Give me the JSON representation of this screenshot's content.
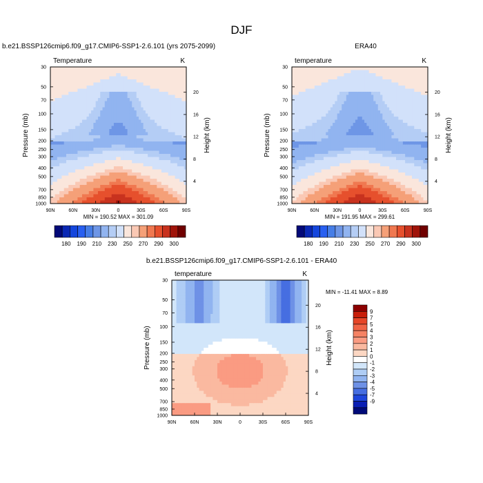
{
  "page_title": "DJF",
  "panels": [
    {
      "title": "b.e21.BSSP126cmip6.f09_g17.CMIP6-SSP1-2.6.101 (yrs 2075-2099)",
      "left_label": "Temperature",
      "right_label": "K",
      "minmax": "MIN = 190.52   MAX = 301.09"
    },
    {
      "title": "ERA40",
      "left_label": "temperature",
      "right_label": "K",
      "minmax": "MIN = 191.95   MAX = 299.61"
    },
    {
      "title": "b.e21.BSSP126cmip6.f09_g17.CMIP6-SSP1-2.6.101 - ERA40",
      "left_label": "temperature",
      "right_label": "K",
      "minmax": "MIN = -11.41   MAX =   8.89"
    }
  ],
  "chart_data": [
    {
      "type": "heatmap",
      "title": "b.e21.BSSP126cmip6.f09_g17.CMIP6-SSP1-2.6.101 (yrs 2075-2099)",
      "variable": "Temperature",
      "units": "K",
      "xlabel": "",
      "ylabel": "Pressure (mb)",
      "ylabel_right": "Height (km)",
      "x_ticks": [
        "90N",
        "60N",
        "30N",
        "0",
        "30S",
        "60S",
        "90S"
      ],
      "y_ticks": [
        30,
        50,
        70,
        100,
        150,
        200,
        250,
        300,
        400,
        500,
        700,
        850,
        1000
      ],
      "y_right_ticks": [
        4,
        8,
        12,
        16,
        20
      ],
      "ylim": [
        1000,
        30
      ],
      "min": 190.52,
      "max": 301.09,
      "colorbar_labels": [
        180,
        190,
        210,
        230,
        250,
        270,
        290,
        300
      ],
      "colorbar_colors": [
        "#030a78",
        "#0a28b4",
        "#1446dc",
        "#285ff0",
        "#467de6",
        "#6e96e6",
        "#91b4f0",
        "#b4cdf5",
        "#d2e1fa",
        "#fae6dc",
        "#fac8b4",
        "#f5a078",
        "#f07850",
        "#e6502d",
        "#c8321e",
        "#a0140a",
        "#700000"
      ]
    },
    {
      "type": "heatmap",
      "title": "ERA40",
      "variable": "temperature",
      "units": "K",
      "xlabel": "",
      "ylabel": "Pressure (mb)",
      "ylabel_right": "Height (km)",
      "x_ticks": [
        "90N",
        "60N",
        "30N",
        "0",
        "30S",
        "60S",
        "90S"
      ],
      "y_ticks": [
        30,
        50,
        70,
        100,
        150,
        200,
        250,
        300,
        400,
        500,
        700,
        850,
        1000
      ],
      "y_right_ticks": [
        4,
        8,
        12,
        16,
        20
      ],
      "ylim": [
        1000,
        30
      ],
      "min": 191.95,
      "max": 299.61,
      "colorbar_labels": [
        180,
        190,
        210,
        230,
        250,
        270,
        290,
        300
      ],
      "colorbar_colors": [
        "#030a78",
        "#0a28b4",
        "#1446dc",
        "#285ff0",
        "#467de6",
        "#6e96e6",
        "#91b4f0",
        "#b4cdf5",
        "#d2e1fa",
        "#fae6dc",
        "#fac8b4",
        "#f5a078",
        "#f07850",
        "#e6502d",
        "#c8321e",
        "#a0140a",
        "#700000"
      ]
    },
    {
      "type": "heatmap",
      "title": "b.e21.BSSP126cmip6.f09_g17.CMIP6-SSP1-2.6.101 - ERA40",
      "variable": "temperature",
      "units": "K",
      "xlabel": "",
      "ylabel": "Pressure (mb)",
      "ylabel_right": "Height (km)",
      "x_ticks": [
        "90N",
        "60N",
        "30N",
        "0",
        "30S",
        "60S",
        "90S"
      ],
      "y_ticks": [
        30,
        50,
        70,
        100,
        150,
        200,
        250,
        300,
        400,
        500,
        700,
        850,
        1000
      ],
      "y_right_ticks": [
        4,
        8,
        12,
        16,
        20
      ],
      "ylim": [
        1000,
        30
      ],
      "min": -11.41,
      "max": 8.89,
      "colorbar_labels": [
        9,
        7,
        5,
        4,
        3,
        2,
        1,
        0,
        -1,
        -2,
        -3,
        -4,
        -5,
        -7,
        -9
      ],
      "colorbar_colors": [
        "#8c0000",
        "#c81e0a",
        "#e64628",
        "#f06446",
        "#f58264",
        "#fa9b82",
        "#fab9a0",
        "#fcd7c3",
        "#ffffff",
        "#d2e6fa",
        "#afcdf5",
        "#91b4f0",
        "#6e91e6",
        "#466ee1",
        "#1e46dc",
        "#0a1eb4",
        "#000a78"
      ]
    }
  ]
}
